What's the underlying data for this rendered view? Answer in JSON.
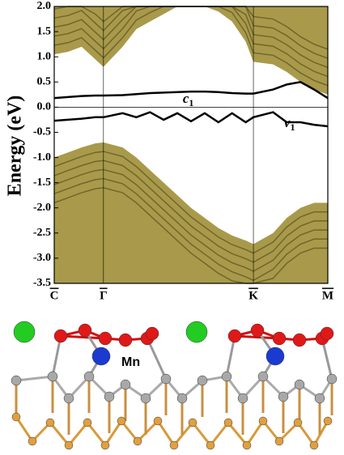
{
  "chart_data": {
    "type": "line",
    "y_label": "Energy (eV)",
    "xlim": [
      0,
      1
    ],
    "xticks": [
      {
        "value": 0,
        "label": "C"
      },
      {
        "value": 0.18,
        "label": "Γ"
      },
      {
        "value": 0.728,
        "label": "K"
      },
      {
        "value": 1,
        "label": "M"
      }
    ],
    "ylim": [
      -3.5,
      2.0
    ],
    "yticks": [
      {
        "value": 2,
        "label": "2.0"
      },
      1.5,
      {
        "value": 1,
        "label": "1.0"
      },
      0.5,
      {
        "value": 0,
        "label": "0.0"
      },
      -0.5,
      {
        "value": -1,
        "label": "-1.0"
      },
      -1.5,
      {
        "value": -2,
        "label": "-2.0"
      },
      -2.5,
      {
        "value": -3,
        "label": "-3.0"
      },
      -3.5
    ],
    "x": [
      0,
      0.05,
      0.1,
      0.15,
      0.18,
      0.25,
      0.3,
      0.35,
      0.4,
      0.45,
      0.5,
      0.55,
      0.6,
      0.65,
      0.7,
      0.728,
      0.8,
      0.85,
      0.9,
      0.95,
      1.0
    ],
    "series": [
      {
        "fill": "above",
        "color": "#a89a4a",
        "values": [
          1.05,
          1.1,
          1.2,
          0.95,
          0.8,
          1.2,
          1.55,
          1.7,
          1.85,
          2.0,
          2.0,
          2.0,
          1.9,
          1.7,
          1.3,
          0.9,
          0.85,
          0.7,
          0.5,
          0.35,
          0.25
        ]
      },
      {
        "fill": "below",
        "color": "#a89a4a",
        "values": [
          -1.0,
          -0.9,
          -0.8,
          -0.72,
          -0.7,
          -0.8,
          -1.0,
          -1.25,
          -1.5,
          -1.75,
          -2.0,
          -2.2,
          -2.4,
          -2.55,
          -2.65,
          -2.72,
          -2.5,
          -2.2,
          -2.0,
          -1.9,
          -1.9
        ]
      },
      {
        "color": "#000000",
        "values": [
          0.18,
          0.2,
          0.22,
          0.23,
          0.23,
          0.24,
          0.26,
          0.28,
          0.29,
          0.3,
          0.31,
          0.31,
          0.3,
          0.28,
          0.27,
          0.27,
          0.35,
          0.45,
          0.5,
          0.35,
          0.18
        ]
      },
      {
        "color": "#000000",
        "values": [
          -0.27,
          -0.25,
          -0.23,
          -0.2,
          -0.2,
          -0.12,
          -0.2,
          -0.1,
          -0.25,
          -0.12,
          -0.28,
          -0.12,
          -0.3,
          -0.12,
          -0.3,
          -0.2,
          -0.1,
          -0.3,
          -0.3,
          -0.35,
          -0.38
        ]
      }
    ],
    "annotations": [
      {
        "text": "c",
        "sub": "1",
        "x": 0.47,
        "y": 0.15
      },
      {
        "text": "v",
        "sub": "1",
        "x": 0.84,
        "y": -0.33
      }
    ],
    "structure_label": "Mn"
  }
}
